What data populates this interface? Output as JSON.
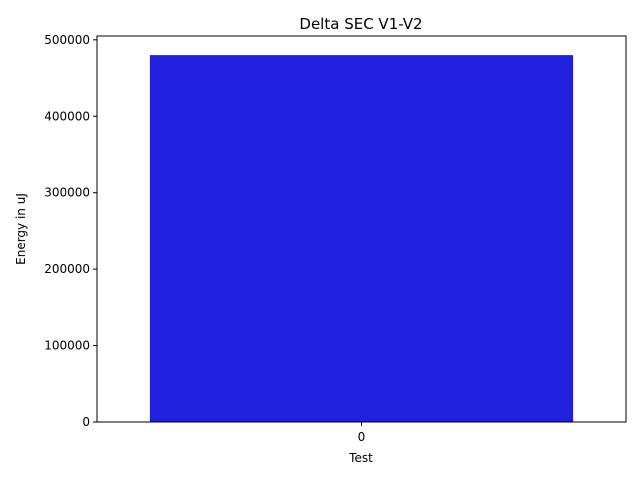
{
  "chart_data": {
    "type": "bar",
    "title": "Delta SEC V1-V2",
    "xlabel": "Test",
    "ylabel": "Energy in uJ",
    "categories": [
      "0"
    ],
    "values": [
      480000
    ],
    "ylim": [
      0,
      505000
    ],
    "yticks": [
      0,
      100000,
      200000,
      300000,
      400000,
      500000
    ],
    "ytick_labels": [
      "0",
      "100000",
      "200000",
      "300000",
      "400000",
      "500000"
    ],
    "grid": false,
    "bar_color": "#2020dd"
  }
}
